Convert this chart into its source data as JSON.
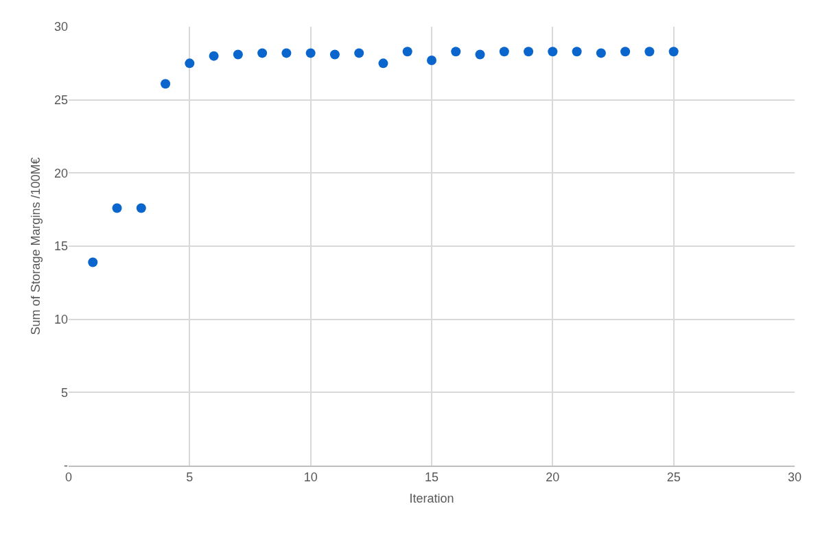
{
  "chart_data": {
    "type": "scatter",
    "xlabel": "Iteration",
    "ylabel": "Sum of Storage Margins /100M€",
    "x": [
      1,
      2,
      3,
      4,
      5,
      6,
      7,
      8,
      9,
      10,
      11,
      12,
      13,
      14,
      15,
      16,
      17,
      18,
      19,
      20,
      21,
      22,
      23,
      24,
      25
    ],
    "series": [
      {
        "color": "#0a66cc",
        "values": [
          13.9,
          17.6,
          17.6,
          26.1,
          27.5,
          28.0,
          28.1,
          28.2,
          28.2,
          28.2,
          28.1,
          28.2,
          27.5,
          28.3,
          27.7,
          28.3,
          28.1,
          28.3,
          28.3,
          28.3,
          28.3,
          28.2,
          28.3,
          28.3,
          28.3
        ]
      }
    ],
    "xlim": [
      0,
      30
    ],
    "xticks": [
      0,
      5,
      10,
      15,
      20,
      25,
      30
    ],
    "ylim": [
      0,
      30
    ],
    "yticks": [
      {
        "value": 0,
        "label": "-"
      },
      5,
      10,
      15,
      20,
      25,
      30
    ],
    "grid": true,
    "marker": "circle"
  }
}
